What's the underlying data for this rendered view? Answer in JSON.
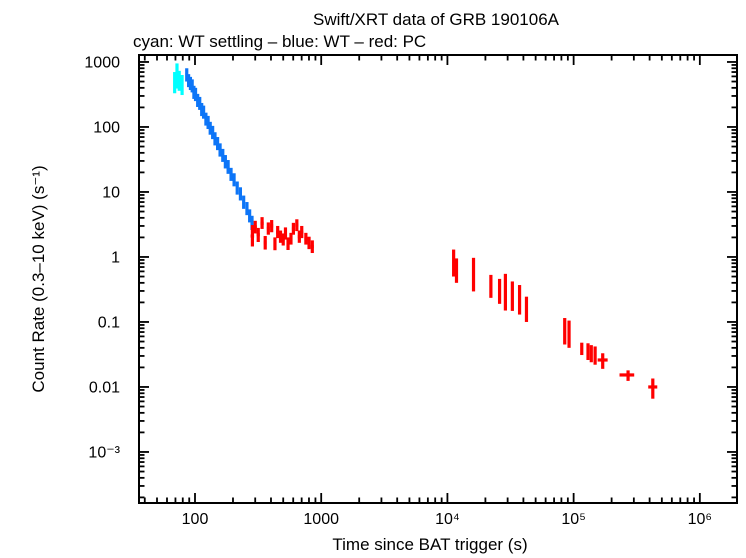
{
  "chart_data": {
    "type": "scatter",
    "title": "Swift/XRT data of GRB 190106A",
    "subtitle": "cyan: WT settling – blue: WT – red: PC",
    "xlabel": "Time since BAT trigger (s)",
    "ylabel": "Count Rate (0.3–10 keV) (s⁻¹)",
    "xscale": "log",
    "yscale": "log",
    "xlim": [
      36,
      1970000
    ],
    "ylim": [
      0.000164,
      1280
    ],
    "grid": false,
    "axis_color": "#000000",
    "background_color": "#ffffff",
    "x_ticks": [
      {
        "v": 100,
        "label": "100"
      },
      {
        "v": 1000,
        "label": "1000"
      },
      {
        "v": 10000,
        "label": "10⁴"
      },
      {
        "v": 100000,
        "label": "10⁵"
      },
      {
        "v": 1000000,
        "label": "10⁶"
      }
    ],
    "y_ticks": [
      {
        "v": 1000,
        "label": "1000"
      },
      {
        "v": 100,
        "label": "100"
      },
      {
        "v": 10,
        "label": "10"
      },
      {
        "v": 1,
        "label": "1"
      },
      {
        "v": 0.1,
        "label": "0.1"
      },
      {
        "v": 0.01,
        "label": "0.01"
      },
      {
        "v": 0.001,
        "label": "10⁻³"
      }
    ],
    "legend": [
      {
        "color_name": "cyan",
        "color": "#00ffff",
        "label": "WT settling"
      },
      {
        "color_name": "blue",
        "color": "#0d75f7",
        "label": "WT"
      },
      {
        "color_name": "red",
        "color": "#ff0000",
        "label": "PC"
      }
    ],
    "point_format": [
      "t",
      "t_lo",
      "t_hi",
      "rate",
      "rate_lo",
      "rate_hi"
    ],
    "series": [
      {
        "mode": "WT settling",
        "color": "#00ffff",
        "points": [
          [
            69,
            67.5,
            70.5,
            480,
            330,
            700
          ],
          [
            72,
            70.5,
            73.5,
            560,
            390,
            950
          ],
          [
            75,
            73.5,
            76.5,
            510,
            360,
            730
          ],
          [
            79,
            77.5,
            80.5,
            445,
            310,
            630
          ]
        ]
      },
      {
        "mode": "WT",
        "color": "#0d75f7",
        "points": [
          [
            86,
            84,
            88,
            640,
            500,
            800
          ],
          [
            89,
            87,
            91,
            520,
            410,
            650
          ],
          [
            92,
            90,
            94,
            470,
            370,
            590
          ],
          [
            95,
            93,
            97,
            430,
            340,
            540
          ],
          [
            98,
            96,
            100,
            345,
            270,
            430
          ],
          [
            101,
            99,
            103,
            318,
            250,
            400
          ],
          [
            105,
            103,
            107,
            258,
            203,
            323
          ],
          [
            109,
            107,
            111,
            232,
            183,
            290
          ],
          [
            113,
            111,
            115,
            187,
            147,
            234
          ],
          [
            117,
            115,
            119,
            170,
            134,
            213
          ],
          [
            122,
            120,
            124,
            133,
            105,
            166
          ],
          [
            127,
            125,
            129,
            118,
            93,
            148
          ],
          [
            132,
            130,
            134,
            96,
            76,
            120
          ],
          [
            138,
            136,
            140,
            83,
            65,
            104
          ],
          [
            144,
            142,
            146,
            66,
            52,
            83
          ],
          [
            151,
            149,
            153,
            56,
            44,
            70
          ],
          [
            158,
            156,
            160,
            44.5,
            35,
            56
          ],
          [
            166,
            163,
            169,
            37,
            29,
            46
          ],
          [
            174,
            171,
            177,
            29.5,
            23,
            37
          ],
          [
            183,
            180,
            186,
            24.5,
            19,
            31
          ],
          [
            193,
            190,
            196,
            18.8,
            14.8,
            23.5
          ],
          [
            204,
            201,
            207,
            15.5,
            12.2,
            19.4
          ],
          [
            216,
            213,
            219,
            11.6,
            9.1,
            14.5
          ],
          [
            229,
            226,
            232,
            9.4,
            7.4,
            11.8
          ],
          [
            243,
            239,
            247,
            7.0,
            5.5,
            8.8
          ],
          [
            258,
            254,
            262,
            5.6,
            4.4,
            7.0
          ],
          [
            271,
            267,
            275,
            4.35,
            3.4,
            5.4
          ],
          [
            283,
            279,
            287,
            3.4,
            2.6,
            4.3
          ]
        ]
      },
      {
        "mode": "PC",
        "color": "#ff0000",
        "points": [
          [
            285,
            276,
            294,
            2.1,
            1.45,
            3.1
          ],
          [
            300,
            291,
            309,
            2.9,
            2.3,
            3.6
          ],
          [
            317,
            308,
            326,
            2.2,
            1.7,
            2.8
          ],
          [
            340,
            330,
            350,
            3.3,
            2.7,
            4.1
          ],
          [
            360,
            351,
            369,
            1.65,
            1.3,
            2.1
          ],
          [
            381,
            371,
            391,
            2.75,
            2.2,
            3.4
          ],
          [
            405,
            394,
            416,
            3.0,
            2.4,
            3.7
          ],
          [
            430,
            419,
            441,
            1.6,
            1.27,
            2.0
          ],
          [
            452,
            440,
            464,
            2.4,
            1.95,
            3.0
          ],
          [
            476,
            463,
            489,
            2.05,
            1.65,
            2.55
          ],
          [
            500,
            487,
            513,
            1.85,
            1.5,
            2.3
          ],
          [
            521,
            508,
            534,
            2.3,
            1.85,
            2.85
          ],
          [
            546,
            532,
            560,
            1.6,
            1.28,
            2.0
          ],
          [
            576,
            561,
            591,
            1.9,
            1.55,
            2.35
          ],
          [
            602,
            586,
            618,
            2.7,
            2.2,
            3.35
          ],
          [
            641,
            624,
            658,
            3.1,
            2.5,
            3.8
          ],
          [
            671,
            653,
            689,
            2.05,
            1.65,
            2.55
          ],
          [
            701,
            682,
            720,
            2.4,
            1.95,
            3.0
          ],
          [
            756,
            736,
            776,
            1.9,
            1.55,
            2.35
          ],
          [
            801,
            780,
            822,
            1.65,
            1.32,
            2.05
          ],
          [
            850,
            827,
            873,
            1.45,
            1.15,
            1.8
          ],
          [
            11200,
            11000,
            11400,
            0.85,
            0.5,
            1.3
          ],
          [
            11800,
            11600,
            12000,
            0.55,
            0.4,
            0.95
          ],
          [
            16100,
            15800,
            16400,
            0.53,
            0.295,
            0.97
          ],
          [
            22100,
            21700,
            22500,
            0.355,
            0.235,
            0.53
          ],
          [
            25900,
            25400,
            26400,
            0.31,
            0.19,
            0.46
          ],
          [
            28800,
            28200,
            29400,
            0.3,
            0.15,
            0.55
          ],
          [
            32700,
            32100,
            33300,
            0.25,
            0.148,
            0.42
          ],
          [
            37300,
            36600,
            38000,
            0.215,
            0.13,
            0.37
          ],
          [
            42300,
            41500,
            43100,
            0.157,
            0.1,
            0.245
          ],
          [
            85000,
            83500,
            86500,
            0.075,
            0.045,
            0.115
          ],
          [
            92000,
            90500,
            93500,
            0.065,
            0.04,
            0.105
          ],
          [
            116000,
            114000,
            118000,
            0.039,
            0.031,
            0.048
          ],
          [
            130000,
            128000,
            132000,
            0.035,
            0.026,
            0.047
          ],
          [
            138000,
            136000,
            140000,
            0.032,
            0.024,
            0.044
          ],
          [
            148000,
            146000,
            150000,
            0.03,
            0.022,
            0.042
          ],
          [
            170000,
            155000,
            186000,
            0.026,
            0.019,
            0.033
          ],
          [
            270000,
            231000,
            302000,
            0.0153,
            0.0124,
            0.018
          ],
          [
            424000,
            390000,
            460000,
            0.01,
            0.0066,
            0.0135
          ]
        ]
      }
    ]
  }
}
